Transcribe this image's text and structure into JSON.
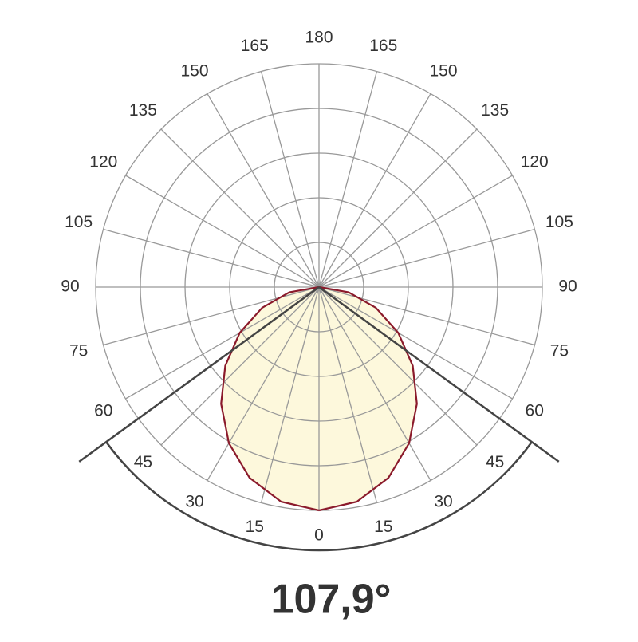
{
  "chart_data": {
    "type": "polar",
    "angle_ticks": [
      0,
      15,
      30,
      45,
      60,
      75,
      90,
      105,
      120,
      135,
      150,
      165,
      180
    ],
    "rlim": [
      0,
      100
    ],
    "rticks": [
      20,
      40,
      60,
      80,
      100
    ],
    "angles": [
      0,
      10,
      20,
      30,
      40,
      50,
      60,
      70,
      80,
      90
    ],
    "values": [
      100,
      97.6,
      90.9,
      80.7,
      68.2,
      54.8,
      41,
      27.1,
      13.5,
      0
    ],
    "color": "#8b1a2b",
    "fill": "#fdf8dc",
    "beam_angle": {
      "value": 107.9,
      "label": "107,9°"
    }
  }
}
